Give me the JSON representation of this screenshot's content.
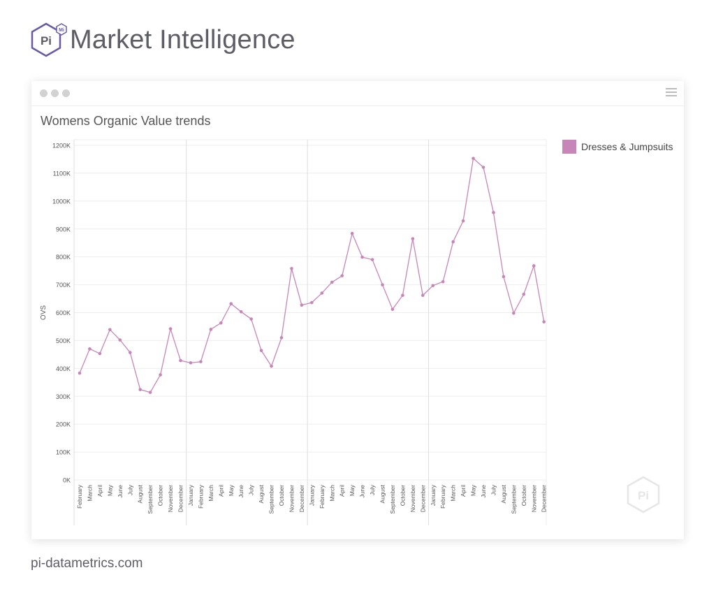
{
  "header": {
    "logo_text": "Pi",
    "logo_badge": "Mi",
    "title": "Market Intelligence"
  },
  "footer": {
    "url": "pi-datametrics.com"
  },
  "colors": {
    "series": "#c786b8",
    "gridline": "#eeeeee",
    "separator": "#dddddd",
    "logo": "#6a5aa6",
    "text": "#555555"
  },
  "icons": {
    "window_dots": "window-dots-icon",
    "menu": "hamburger-menu-icon",
    "watermark": "pi-hexagon-icon"
  },
  "chart_data": {
    "type": "line",
    "title": "Womens Organic Value trends",
    "xlabel": "",
    "ylabel": "OVS",
    "ylim": [
      0,
      1200000
    ],
    "yticks": [
      "0K",
      "100K",
      "200K",
      "300K",
      "400K",
      "500K",
      "600K",
      "700K",
      "800K",
      "900K",
      "1000K",
      "1100K",
      "1200K"
    ],
    "ytick_values": [
      0,
      100000,
      200000,
      300000,
      400000,
      500000,
      600000,
      700000,
      800000,
      900000,
      1000000,
      1100000,
      1200000
    ],
    "grid": true,
    "legend_position": "top-right",
    "categories": [
      "February",
      "March",
      "April",
      "May",
      "June",
      "July",
      "August",
      "September",
      "October",
      "November",
      "December",
      "January",
      "February",
      "March",
      "April",
      "May",
      "June",
      "July",
      "August",
      "September",
      "October",
      "November",
      "December",
      "January",
      "February",
      "March",
      "April",
      "May",
      "June",
      "July",
      "August",
      "September",
      "October",
      "November",
      "December",
      "January",
      "February",
      "March",
      "April",
      "May",
      "June",
      "July",
      "August",
      "September",
      "October",
      "November",
      "December"
    ],
    "year_breaks_after_index": [
      10,
      22,
      34
    ],
    "series": [
      {
        "name": "Dresses & Jumpsuits",
        "values": [
          383000,
          470000,
          453000,
          539000,
          502000,
          457000,
          324000,
          314000,
          377000,
          542000,
          428000,
          420000,
          424000,
          540000,
          563000,
          632000,
          603000,
          577000,
          464000,
          408000,
          510000,
          758000,
          627000,
          636000,
          670000,
          709000,
          732000,
          884000,
          799000,
          790000,
          700000,
          612000,
          662000,
          865000,
          662000,
          697000,
          711000,
          854000,
          929000,
          1153000,
          1121000,
          959000,
          729000,
          598000,
          666000,
          768000,
          567000
        ]
      }
    ]
  }
}
